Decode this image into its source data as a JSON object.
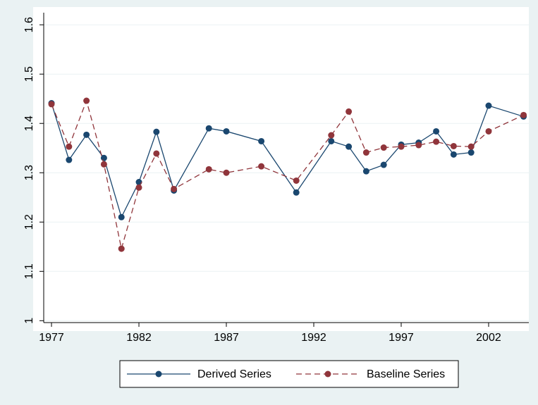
{
  "chart_data": {
    "type": "line",
    "x": [
      1977,
      1978,
      1979,
      1980,
      1981,
      1982,
      1983,
      1984,
      1986,
      1987,
      1989,
      1991,
      1993,
      1994,
      1995,
      1996,
      1997,
      1998,
      1999,
      2000,
      2001,
      2002,
      2004
    ],
    "series": [
      {
        "name": "Derived Series",
        "color": "#1a476f",
        "dashed": false,
        "values": [
          1.441,
          1.326,
          1.377,
          1.33,
          1.21,
          1.281,
          1.383,
          1.264,
          1.39,
          1.384,
          1.364,
          1.26,
          1.364,
          1.353,
          1.303,
          1.316,
          1.357,
          1.361,
          1.384,
          1.337,
          1.341,
          1.436,
          1.414
        ]
      },
      {
        "name": "Baseline Series",
        "color": "#90353b",
        "dashed": true,
        "values": [
          1.439,
          1.353,
          1.446,
          1.317,
          1.146,
          1.27,
          1.339,
          1.267,
          1.307,
          1.3,
          1.313,
          1.284,
          1.376,
          1.424,
          1.341,
          1.351,
          1.353,
          1.356,
          1.363,
          1.354,
          1.353,
          1.384,
          1.417
        ]
      }
    ],
    "xlim": [
      1975.95,
      2004.3
    ],
    "xticks": [
      1977,
      1982,
      1987,
      1992,
      1997,
      2002
    ],
    "ylim": [
      0.979,
      1.636
    ],
    "yticks": [
      1,
      1.1,
      1.2,
      1.3,
      1.4,
      1.5,
      1.6
    ],
    "grid": true
  }
}
